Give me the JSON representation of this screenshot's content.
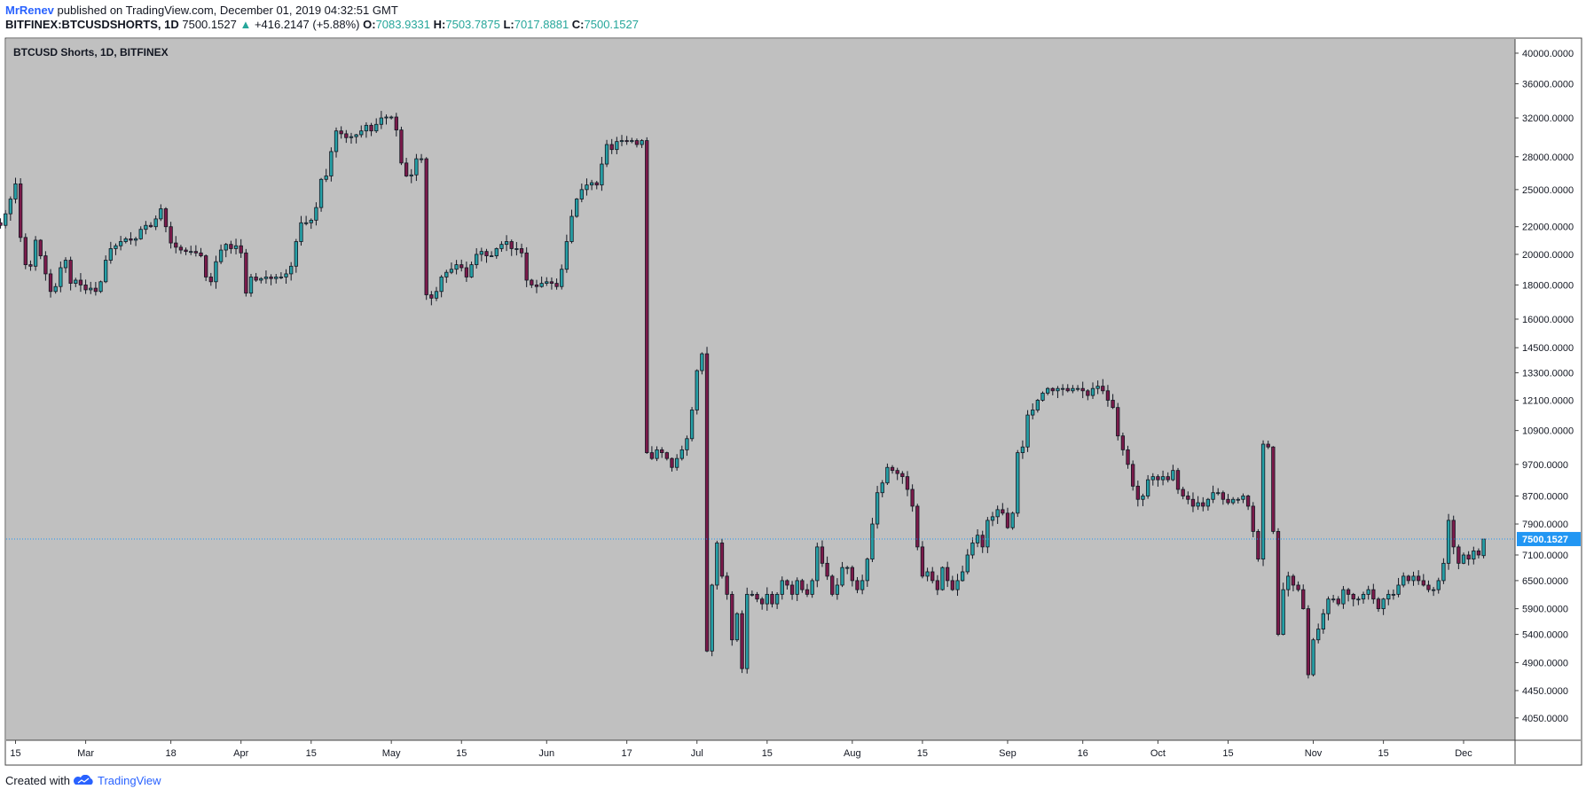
{
  "header": {
    "author": "MrRenev",
    "published_text": "published on TradingView.com, December 01, 2019 04:32:51 GMT",
    "symbol": "BITFINEX:BTCUSDSHORTS, 1D",
    "last_price": "7500.1527",
    "arrow": "▲",
    "change": "+416.2147 (+5.88%)",
    "o_label": "O:",
    "o_value": "7083.9331",
    "h_label": "H:",
    "h_value": "7503.7875",
    "l_label": "L:",
    "l_value": "7017.8881",
    "c_label": "C:",
    "c_value": "7500.1527"
  },
  "pane_title": "BTCUSD Shorts, 1D, BITFINEX",
  "footer": {
    "created_with": "Created with",
    "brand": "TradingView"
  },
  "colors": {
    "pane_background": "#c0c0c0",
    "up_fill": "#26a0a6",
    "down_fill": "#7b1a4a",
    "wick": "#131722",
    "price_line": "#2196f3",
    "price_label_bg": "#2196f3"
  },
  "chart_data": {
    "type": "candlestick",
    "title": "BTCUSD Shorts, 1D, BITFINEX",
    "last_price_label": "7500.1527",
    "y_scale": "log",
    "ylim": [
      3750,
      42000
    ],
    "y_ticks": [
      "40000.0000",
      "36000.0000",
      "32000.0000",
      "28000.0000",
      "25000.0000",
      "22000.0000",
      "20000.0000",
      "18000.0000",
      "16000.0000",
      "14500.0000",
      "13300.0000",
      "12100.0000",
      "10900.0000",
      "9700.0000",
      "8700.0000",
      "7900.0000",
      "7100.0000",
      "6500.0000",
      "5900.0000",
      "5400.0000",
      "4900.0000",
      "4450.0000",
      "4050.0000"
    ],
    "x_tick_labels": [
      {
        "label": "15",
        "date": "2019-02-15"
      },
      {
        "label": "Mar",
        "date": "2019-03-01"
      },
      {
        "label": "18",
        "date": "2019-03-18"
      },
      {
        "label": "Apr",
        "date": "2019-04-01"
      },
      {
        "label": "15",
        "date": "2019-04-15"
      },
      {
        "label": "May",
        "date": "2019-05-01"
      },
      {
        "label": "15",
        "date": "2019-05-15"
      },
      {
        "label": "Jun",
        "date": "2019-06-01"
      },
      {
        "label": "17",
        "date": "2019-06-17"
      },
      {
        "label": "Jul",
        "date": "2019-07-01"
      },
      {
        "label": "15",
        "date": "2019-07-15"
      },
      {
        "label": "Aug",
        "date": "2019-08-01"
      },
      {
        "label": "15",
        "date": "2019-08-15"
      },
      {
        "label": "Sep",
        "date": "2019-09-01"
      },
      {
        "label": "16",
        "date": "2019-09-16"
      },
      {
        "label": "Oct",
        "date": "2019-10-01"
      },
      {
        "label": "15",
        "date": "2019-10-15"
      },
      {
        "label": "Nov",
        "date": "2019-11-01"
      },
      {
        "label": "15",
        "date": "2019-11-15"
      },
      {
        "label": "Dec",
        "date": "2019-12-01"
      }
    ],
    "closes_from": "2019-02-10",
    "closes": [
      25600,
      22300,
      22100,
      23000,
      24200,
      25500,
      21200,
      19300,
      19200,
      21000,
      19900,
      18700,
      17600,
      17900,
      19100,
      19600,
      18100,
      18300,
      18000,
      17700,
      17800,
      17600,
      18200,
      19600,
      20400,
      20600,
      20900,
      21100,
      21000,
      21100,
      21800,
      22100,
      22000,
      22600,
      23400,
      22000,
      20800,
      20500,
      20300,
      20200,
      20200,
      20100,
      19900,
      18500,
      18200,
      19500,
      20300,
      20700,
      20400,
      20600,
      20100,
      17500,
      18500,
      18300,
      18400,
      18500,
      18400,
      18500,
      18500,
      18700,
      19200,
      20900,
      22300,
      22300,
      22500,
      23500,
      25900,
      26200,
      28500,
      30600,
      30300,
      29900,
      30000,
      30200,
      30600,
      31200,
      30600,
      31300,
      32000,
      32100,
      32100,
      30700,
      27400,
      26200,
      26300,
      27800,
      27800,
      17400,
      17200,
      17600,
      18500,
      18800,
      19000,
      19300,
      19100,
      18500,
      19300,
      20000,
      20200,
      19900,
      19900,
      20400,
      20700,
      20900,
      20400,
      20400,
      20100,
      18300,
      18000,
      17900,
      18100,
      18200,
      18100,
      17900,
      19000,
      20900,
      22800,
      24200,
      25000,
      25400,
      25600,
      25400,
      27300,
      29200,
      28700,
      29500,
      29600,
      29500,
      29600,
      29200,
      29600,
      10100,
      9900,
      10200,
      10100,
      9900,
      9600,
      9900,
      10200,
      10600,
      11700,
      13400,
      14200,
      5100,
      6400,
      7400,
      6600,
      6200,
      5300,
      5800,
      4800,
      6200,
      6200,
      6100,
      6000,
      6200,
      6000,
      6200,
      6500,
      6400,
      6200,
      6500,
      6300,
      6200,
      6500,
      7300,
      6900,
      6600,
      6200,
      6400,
      6800,
      6800,
      6500,
      6300,
      6500,
      7000,
      7900,
      8800,
      9100,
      9600,
      9500,
      9400,
      9300,
      8900,
      8400,
      7300,
      6600,
      6700,
      6500,
      6300,
      6800,
      6500,
      6300,
      6500,
      6700,
      7100,
      7400,
      7600,
      7300,
      8000,
      8100,
      8300,
      8200,
      7800,
      8200,
      10100,
      10300,
      11500,
      11700,
      12100,
      12400,
      12600,
      12500,
      12600,
      12600,
      12500,
      12600,
      12600,
      12500,
      12300,
      12600,
      12700,
      12500,
      12100,
      11800,
      10700,
      10200,
      9700,
      9000,
      8600,
      8700,
      9200,
      9300,
      9200,
      9300,
      9200,
      9500,
      8900,
      8700,
      8600,
      8400,
      8500,
      8400,
      8600,
      8800,
      8800,
      8600,
      8500,
      8600,
      8600,
      8700,
      8400,
      7700,
      7000,
      10400,
      10300,
      7700,
      5400,
      6300,
      6600,
      6400,
      6300,
      5900,
      4700,
      5300,
      5500,
      5800,
      6100,
      6100,
      6000,
      6300,
      6200,
      6100,
      6100,
      6200,
      6300,
      6100,
      5900,
      6100,
      6200,
      6200,
      6400,
      6600,
      6500,
      6600,
      6500,
      6400,
      6300,
      6300,
      6500,
      6900,
      8000,
      7300,
      6900,
      7100,
      7000,
      7200,
      7100,
      7500
    ],
    "last_open": 7083.9331,
    "last_high": 7503.7875,
    "last_low": 7017.8881,
    "last_close": 7500.1527
  }
}
